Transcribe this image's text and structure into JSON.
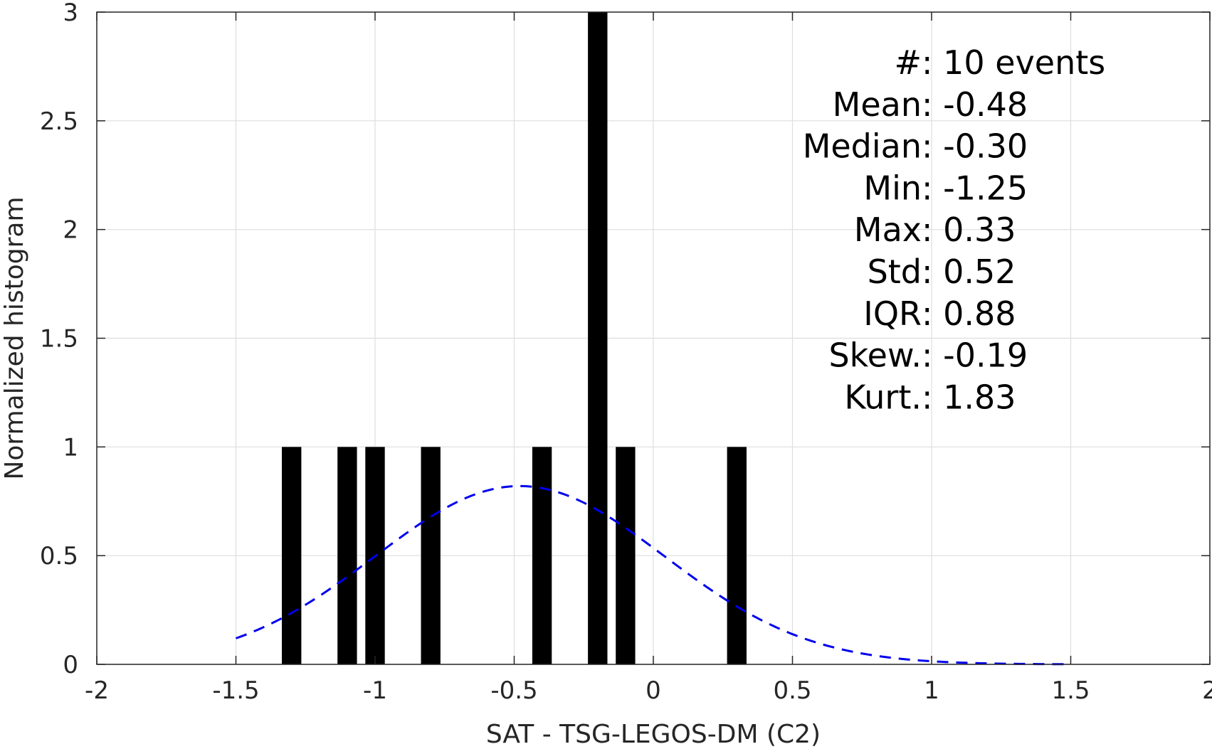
{
  "chart_data": {
    "type": "bar",
    "xlabel": "SAT - TSG-LEGOS-DM (C2)",
    "ylabel": "Normalized histogram",
    "xlim": [
      -2,
      2
    ],
    "ylim": [
      0,
      3
    ],
    "grid": true,
    "xticks": [
      -2,
      -1.5,
      -1,
      -0.5,
      0,
      0.5,
      1,
      1.5,
      2
    ],
    "xtick_labels": [
      "-2",
      "-1.5",
      "-1",
      "-0.5",
      "0",
      "0.5",
      "1",
      "1.5",
      "2"
    ],
    "yticks": [
      0,
      0.5,
      1,
      1.5,
      2,
      2.5,
      3
    ],
    "ytick_labels": [
      "0",
      "0.5",
      "1",
      "1.5",
      "2",
      "2.5",
      "3"
    ],
    "bars": [
      {
        "x": -1.3,
        "value": 1
      },
      {
        "x": -1.1,
        "value": 1
      },
      {
        "x": -1.0,
        "value": 1
      },
      {
        "x": -0.8,
        "value": 1
      },
      {
        "x": -0.4,
        "value": 1
      },
      {
        "x": -0.2,
        "value": 3
      },
      {
        "x": -0.1,
        "value": 1
      },
      {
        "x": 0.3,
        "value": 1
      }
    ],
    "bar_width": 0.07,
    "bar_color": "#000000",
    "fit_curve": {
      "style": "dashed",
      "color": "#0000ee",
      "mean": -0.48,
      "std": 0.52,
      "peak": 0.82,
      "x_range": [
        -1.5,
        1.5
      ]
    },
    "stats": [
      {
        "label": "#  ",
        "sep": ": ",
        "value": "10 events"
      },
      {
        "label": "Mean ",
        "sep": ": ",
        "value": "-0.48"
      },
      {
        "label": "Median ",
        "sep": ": ",
        "value": "-0.30"
      },
      {
        "label": "Min ",
        "sep": ": ",
        "value": "-1.25"
      },
      {
        "label": "Max ",
        "sep": ": ",
        "value": "0.33"
      },
      {
        "label": "Std ",
        "sep": ": ",
        "value": "0.52"
      },
      {
        "label": "IQR ",
        "sep": ": ",
        "value": "0.88"
      },
      {
        "label": "Skew. ",
        "sep": ": ",
        "value": "-0.19"
      },
      {
        "label": "Kurt. ",
        "sep": ": ",
        "value": "1.83"
      }
    ]
  }
}
